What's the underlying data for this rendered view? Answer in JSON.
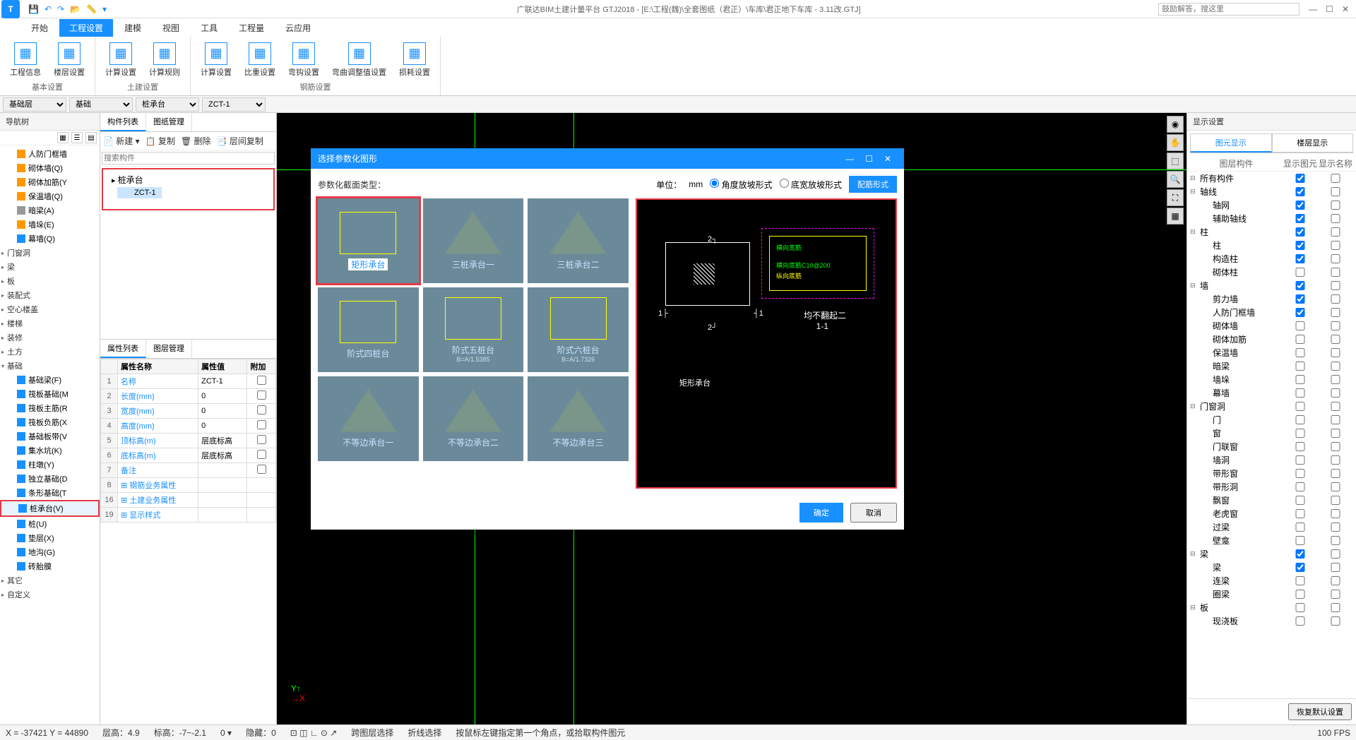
{
  "app": {
    "title": "广联达BIM土建计量平台 GTJ2018 - [E:\\工程(魏)\\全套图纸（君正）\\车库\\君正地下车库 - 3.11改.GTJ]",
    "search_placeholder": "鼓励解答，搜这里"
  },
  "menu": {
    "tabs": [
      "开始",
      "工程设置",
      "建模",
      "视图",
      "工具",
      "工程量",
      "云应用"
    ],
    "active": 1
  },
  "ribbon": {
    "groups": [
      {
        "label": "基本设置",
        "buttons": [
          "工程信息",
          "楼层设置"
        ]
      },
      {
        "label": "土建设置",
        "buttons": [
          "计算设置",
          "计算规则"
        ]
      },
      {
        "label": "钢筋设置",
        "buttons": [
          "计算设置",
          "比重设置",
          "弯钩设置",
          "弯曲调整值设置",
          "损耗设置"
        ]
      }
    ]
  },
  "selectors": {
    "floor": "基础层",
    "category": "基础",
    "type": "桩承台",
    "instance": "ZCT-1"
  },
  "nav": {
    "title": "导航树",
    "items_top": [
      {
        "label": "人防门框墙",
        "ico": "orange"
      },
      {
        "label": "砌体墙(Q)",
        "ico": "orange"
      },
      {
        "label": "砌体加筋(Y",
        "ico": "orange"
      },
      {
        "label": "保温墙(Q)",
        "ico": "orange"
      },
      {
        "label": "暗梁(A)",
        "ico": "gray"
      },
      {
        "label": "墙垛(E)",
        "ico": "orange"
      },
      {
        "label": "幕墙(Q)",
        "ico": "blue"
      }
    ],
    "cats": [
      "门窗洞",
      "梁",
      "板",
      "装配式",
      "空心楼盖",
      "楼梯",
      "装修",
      "土方"
    ],
    "foundation": "基础",
    "foundation_items": [
      {
        "label": "基础梁(F)"
      },
      {
        "label": "筏板基础(M"
      },
      {
        "label": "筏板主筋(R"
      },
      {
        "label": "筏板负筋(X"
      },
      {
        "label": "基础板带(V"
      },
      {
        "label": "集水坑(K)"
      },
      {
        "label": "柱墩(Y)"
      },
      {
        "label": "独立基础(D"
      },
      {
        "label": "条形基础(T"
      },
      {
        "label": "桩承台(V)",
        "selected": true
      },
      {
        "label": "桩(U)"
      },
      {
        "label": "垫层(X)"
      },
      {
        "label": "地沟(G)"
      },
      {
        "label": "砖胎膜"
      }
    ],
    "bottom_cats": [
      "其它",
      "自定义"
    ]
  },
  "components": {
    "tabs": [
      "构件列表",
      "图纸管理"
    ],
    "toolbar": [
      "新建",
      "复制",
      "删除",
      "层间复制"
    ],
    "search_placeholder": "搜索构件",
    "root": "桩承台",
    "child": "ZCT-1"
  },
  "properties": {
    "tabs": [
      "属性列表",
      "图层管理"
    ],
    "headers": [
      "属性名称",
      "属性值",
      "附加"
    ],
    "rows": [
      {
        "i": 1,
        "name": "名称",
        "val": "ZCT-1",
        "chk": false
      },
      {
        "i": 2,
        "name": "长度(mm)",
        "val": "0",
        "chk": true
      },
      {
        "i": 3,
        "name": "宽度(mm)",
        "val": "0",
        "chk": true
      },
      {
        "i": 4,
        "name": "高度(mm)",
        "val": "0",
        "chk": true
      },
      {
        "i": 5,
        "name": "顶标高(m)",
        "val": "层底标高",
        "chk": true
      },
      {
        "i": 6,
        "name": "底标高(m)",
        "val": "层底标高",
        "chk": true
      },
      {
        "i": 7,
        "name": "备注",
        "val": "",
        "chk": true
      },
      {
        "i": 8,
        "name": "钢筋业务属性",
        "val": "",
        "exp": true
      },
      {
        "i": 16,
        "name": "土建业务属性",
        "val": "",
        "exp": true
      },
      {
        "i": 19,
        "name": "显示样式",
        "val": "",
        "exp": true
      }
    ]
  },
  "dialog": {
    "title": "选择参数化图形",
    "type_label": "参数化截面类型：",
    "unit_label": "单位：",
    "unit": "mm",
    "radio1": "角度放坡形式",
    "radio2": "底宽放坡形式",
    "rebar_btn": "配筋形式",
    "shapes": [
      {
        "caption": "矩形承台",
        "selected": true
      },
      {
        "caption": "三桩承台一"
      },
      {
        "caption": "三桩承台二"
      },
      {
        "caption": "阶式四桩台"
      },
      {
        "caption": "阶式五桩台",
        "sub": "B=A/1.5385"
      },
      {
        "caption": "阶式六桩台",
        "sub": "B=A/1.7326"
      },
      {
        "caption": "不等边承台一"
      },
      {
        "caption": "不等边承台二"
      },
      {
        "caption": "不等边承台三"
      }
    ],
    "preview": {
      "name": "矩形承台",
      "section": "均不翻起二",
      "section_sub": "1-1"
    },
    "ok": "确定",
    "cancel": "取消"
  },
  "display": {
    "title": "显示设置",
    "tabs": [
      "图元显示",
      "楼层显示"
    ],
    "header": [
      "图层构件",
      "显示图元",
      "显示名称"
    ],
    "rows": [
      {
        "cat": true,
        "label": "所有构件",
        "c1": true,
        "c2": false
      },
      {
        "cat": true,
        "label": "轴线",
        "c1": true,
        "c2": false
      },
      {
        "sub": true,
        "label": "轴网",
        "c1": true,
        "c2": false
      },
      {
        "sub": true,
        "label": "辅助轴线",
        "c1": true,
        "c2": false
      },
      {
        "cat": true,
        "label": "柱",
        "c1": true,
        "c2": false
      },
      {
        "sub": true,
        "label": "柱",
        "c1": true,
        "c2": false
      },
      {
        "sub": true,
        "label": "构造柱",
        "c1": true,
        "c2": false
      },
      {
        "sub": true,
        "label": "砌体柱",
        "c1": false,
        "c2": false
      },
      {
        "cat": true,
        "label": "墙",
        "c1": true,
        "c2": false
      },
      {
        "sub": true,
        "label": "剪力墙",
        "c1": true,
        "c2": false
      },
      {
        "sub": true,
        "label": "人防门框墙",
        "c1": true,
        "c2": false
      },
      {
        "sub": true,
        "label": "砌体墙",
        "c1": false,
        "c2": false
      },
      {
        "sub": true,
        "label": "砌体加筋",
        "c1": false,
        "c2": false
      },
      {
        "sub": true,
        "label": "保温墙",
        "c1": false,
        "c2": false
      },
      {
        "sub": true,
        "label": "暗梁",
        "c1": false,
        "c2": false
      },
      {
        "sub": true,
        "label": "墙垛",
        "c1": false,
        "c2": false
      },
      {
        "sub": true,
        "label": "幕墙",
        "c1": false,
        "c2": false
      },
      {
        "cat": true,
        "label": "门窗洞",
        "c1": false,
        "c2": false
      },
      {
        "sub": true,
        "label": "门",
        "c1": false,
        "c2": false
      },
      {
        "sub": true,
        "label": "窗",
        "c1": false,
        "c2": false
      },
      {
        "sub": true,
        "label": "门联窗",
        "c1": false,
        "c2": false
      },
      {
        "sub": true,
        "label": "墙洞",
        "c1": false,
        "c2": false
      },
      {
        "sub": true,
        "label": "带形窗",
        "c1": false,
        "c2": false
      },
      {
        "sub": true,
        "label": "带形洞",
        "c1": false,
        "c2": false
      },
      {
        "sub": true,
        "label": "飘窗",
        "c1": false,
        "c2": false
      },
      {
        "sub": true,
        "label": "老虎窗",
        "c1": false,
        "c2": false
      },
      {
        "sub": true,
        "label": "过梁",
        "c1": false,
        "c2": false
      },
      {
        "sub": true,
        "label": "壁龛",
        "c1": false,
        "c2": false
      },
      {
        "cat": true,
        "label": "梁",
        "c1": true,
        "c2": false
      },
      {
        "sub": true,
        "label": "梁",
        "c1": true,
        "c2": false
      },
      {
        "sub": true,
        "label": "连梁",
        "c1": false,
        "c2": false
      },
      {
        "sub": true,
        "label": "圈梁",
        "c1": false,
        "c2": false
      },
      {
        "cat": true,
        "label": "板",
        "c1": false,
        "c2": false
      },
      {
        "sub": true,
        "label": "现浇板",
        "c1": false,
        "c2": false
      }
    ],
    "reset": "恢复默认设置"
  },
  "status": {
    "coords": "X = -37421 Y = 44890",
    "floor_h": "层高：4.9",
    "elev": "标高：-7~-2.1",
    "hidden": "隐藏：0",
    "cross": "跨图层选择",
    "poly": "折线选择",
    "hint": "按鼠标左键指定第一个角点，或拾取构件图元",
    "fps": "100 FPS"
  }
}
